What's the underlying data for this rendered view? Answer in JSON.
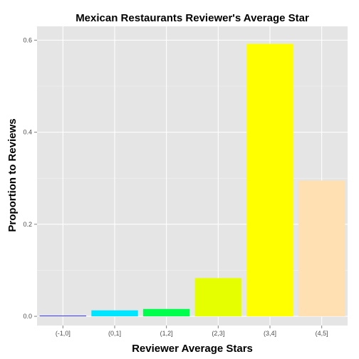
{
  "chart_data": {
    "type": "bar",
    "title": "Mexican Restaurants Reviewer's Average Star",
    "xlabel": "Reviewer Average Stars",
    "ylabel": "Proportion to Reviews",
    "categories": [
      "(-1,0]",
      "(0,1]",
      "(1,2]",
      "(2,3]",
      "(3,4]",
      "(4,5]"
    ],
    "values": [
      0.001,
      0.013,
      0.016,
      0.083,
      0.592,
      0.295
    ],
    "colors": [
      "#0000FF",
      "#00E5FF",
      "#00FF4D",
      "#E6FF00",
      "#FFFF00",
      "#FFE0B3"
    ],
    "ylim": [
      -0.02,
      0.63
    ],
    "yticks": [
      0.0,
      0.2,
      0.4,
      0.6
    ],
    "ytick_labels": [
      "0.0",
      "0.2",
      "0.4",
      "0.6"
    ],
    "grid": true,
    "background": "#E5E5E5"
  }
}
